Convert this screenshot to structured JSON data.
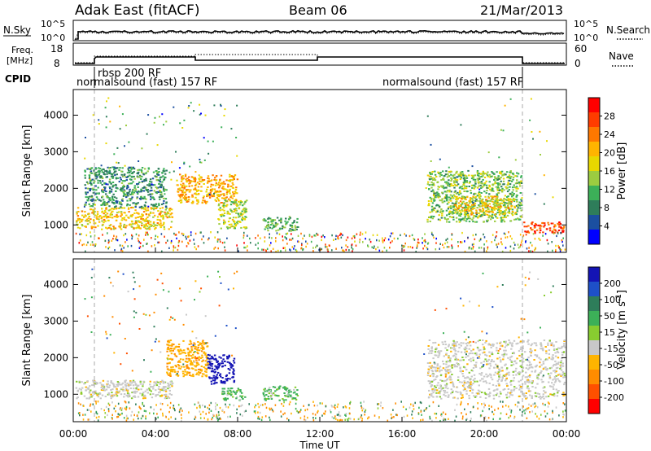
{
  "header": {
    "station": "Adak East (fitACF)",
    "beam": "Beam 06",
    "date": "21/Mar/2013"
  },
  "noise_panel": {
    "left_label": "N.Sky",
    "right_label": "N.Search",
    "left_ticks": [
      "10^5",
      "10^0"
    ],
    "right_ticks": [
      "10^5",
      "10^0"
    ]
  },
  "freq_panel": {
    "left_label_line1": "Freq.",
    "left_label_line2": "[MHz]",
    "right_label": "Nave",
    "left_ticks": [
      "18",
      "8"
    ],
    "right_ticks": [
      "60",
      "0"
    ]
  },
  "cpid": {
    "label": "CPID",
    "segments": [
      {
        "text": "rbsp 200 RF",
        "start_hour": 1.0,
        "end_hour": 6.0
      },
      {
        "text": "normalsound (fast) 157 RF",
        "start_hour": 0.0,
        "end_hour": 1.0
      },
      {
        "text": "normalsound (fast) 157 RF",
        "start_hour": 6.0,
        "end_hour": 22.0
      }
    ]
  },
  "power_panel": {
    "ylabel": "Slant Range [km]",
    "ylim": [
      250,
      4700
    ],
    "yticks": [
      "1000",
      "2000",
      "3000",
      "4000"
    ],
    "colorbar": {
      "label": "Power [dB]",
      "ticks": [
        "28",
        "24",
        "20",
        "16",
        "12",
        "8",
        "4"
      ],
      "colors": [
        "#ff0000",
        "#ff3c00",
        "#ff7800",
        "#ffb400",
        "#e8d800",
        "#9ccc40",
        "#3cb058",
        "#2e7d5a",
        "#1b4fa0",
        "#0000ff"
      ]
    }
  },
  "velocity_panel": {
    "ylabel": "Slant Range [km]",
    "ylim": [
      250,
      4700
    ],
    "yticks": [
      "1000",
      "2000",
      "3000",
      "4000"
    ],
    "colorbar": {
      "label": "Velocity [m s",
      "label_sup": "-1",
      "label_end": "]",
      "ticks": [
        "200",
        "100",
        "50",
        "15",
        "-15",
        "-50",
        "-100",
        "-200"
      ],
      "colors": [
        "#1414b4",
        "#1e50c8",
        "#2e7d5a",
        "#3cb058",
        "#88cc30",
        "#c8c8c8",
        "#ffb400",
        "#ff8c00",
        "#ff5000",
        "#ff0000"
      ]
    }
  },
  "time_axis": {
    "xlabel": "Time UT",
    "ticks": [
      "00:00",
      "04:00",
      "08:00",
      "12:00",
      "16:00",
      "20:00",
      "00:00"
    ],
    "xlim": [
      0,
      24
    ]
  },
  "chart_data": [
    {
      "type": "heatmap",
      "title": "Power [dB]",
      "xlabel": "Time UT",
      "ylabel": "Slant Range [km]",
      "x_units": "hour UT",
      "ylim": [
        250,
        4700
      ],
      "regions": [
        {
          "x": [
            0.1,
            4.8
          ],
          "y": [
            900,
            1500
          ],
          "value": 18
        },
        {
          "x": [
            0.5,
            4.5
          ],
          "y": [
            1500,
            2600
          ],
          "value": 8
        },
        {
          "x": [
            5.0,
            8.0
          ],
          "y": [
            1600,
            2400
          ],
          "value": 20
        },
        {
          "x": [
            7.0,
            8.4
          ],
          "y": [
            900,
            1700
          ],
          "value": 14
        },
        {
          "x": [
            9.2,
            10.9
          ],
          "y": [
            850,
            1250
          ],
          "value": 10
        },
        {
          "x": [
            17.2,
            21.8
          ],
          "y": [
            1100,
            2500
          ],
          "value": 12
        },
        {
          "x": [
            18.5,
            21.5
          ],
          "y": [
            1300,
            1800
          ],
          "value": 18
        },
        {
          "x": [
            21.8,
            23.9
          ],
          "y": [
            800,
            1100
          ],
          "value": 26
        }
      ]
    },
    {
      "type": "heatmap",
      "title": "Velocity [m s-1]",
      "xlabel": "Time UT",
      "ylabel": "Slant Range [km]",
      "x_units": "hour UT",
      "ylim": [
        250,
        4700
      ],
      "regions": [
        {
          "x": [
            0.1,
            4.8
          ],
          "y": [
            900,
            1400
          ],
          "value": 0
        },
        {
          "x": [
            4.5,
            6.5
          ],
          "y": [
            1500,
            2500
          ],
          "value": -40
        },
        {
          "x": [
            6.5,
            7.8
          ],
          "y": [
            1300,
            2100
          ],
          "value": 180
        },
        {
          "x": [
            7.2,
            8.4
          ],
          "y": [
            850,
            1200
          ],
          "value": 30
        },
        {
          "x": [
            9.2,
            10.9
          ],
          "y": [
            850,
            1250
          ],
          "value": 30
        },
        {
          "x": [
            17.2,
            23.9
          ],
          "y": [
            900,
            2500
          ],
          "value": 0
        }
      ]
    }
  ]
}
